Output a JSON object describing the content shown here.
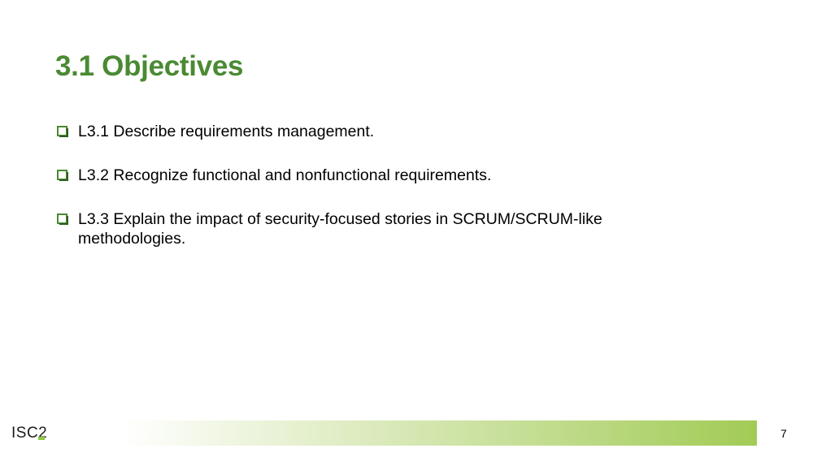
{
  "slide": {
    "title": "3.1 Objectives",
    "objectives": [
      "L3.1 Describe requirements management.",
      "L3.2 Recognize functional and nonfunctional requirements.",
      "L3.3 Explain the impact of security-focused stories in SCRUM/SCRUM-like methodologies."
    ],
    "bullet_icon": "checkbox-icon",
    "accent_color": "#4a8a33"
  },
  "footer": {
    "logo_text": "ISC2",
    "page_number": "7"
  }
}
